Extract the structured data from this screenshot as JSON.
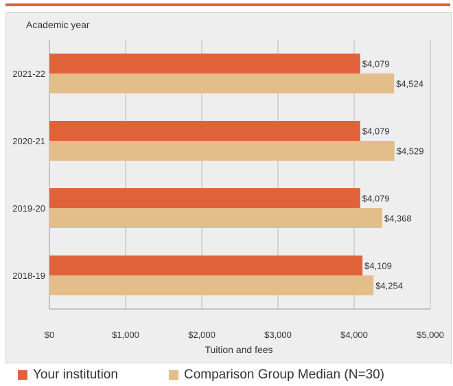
{
  "chart_data": {
    "type": "bar",
    "orientation": "horizontal",
    "y_axis_title": "Academic year",
    "xlabel": "Tuition and fees",
    "categories": [
      "2021-22",
      "2020-21",
      "2019-20",
      "2018-19"
    ],
    "series": [
      {
        "name": "Your institution",
        "color": "#e0623a",
        "values": [
          4079,
          4079,
          4079,
          4109
        ],
        "labels": [
          "$4,079",
          "$4,079",
          "$4,079",
          "$4,109"
        ]
      },
      {
        "name": "Comparison Group Median (N=30)",
        "color": "#e3bd8a",
        "values": [
          4524,
          4529,
          4368,
          4254
        ],
        "labels": [
          "$4,524",
          "$4,529",
          "$4,368",
          "$4,254"
        ]
      }
    ],
    "xlim": [
      0,
      5000
    ],
    "x_ticks": [
      0,
      1000,
      2000,
      3000,
      4000,
      5000
    ],
    "x_tick_labels": [
      "$0",
      "$1,000",
      "$2,000",
      "$3,000",
      "$4,000",
      "$5,000"
    ],
    "grid": true,
    "legend_position": "bottom"
  }
}
